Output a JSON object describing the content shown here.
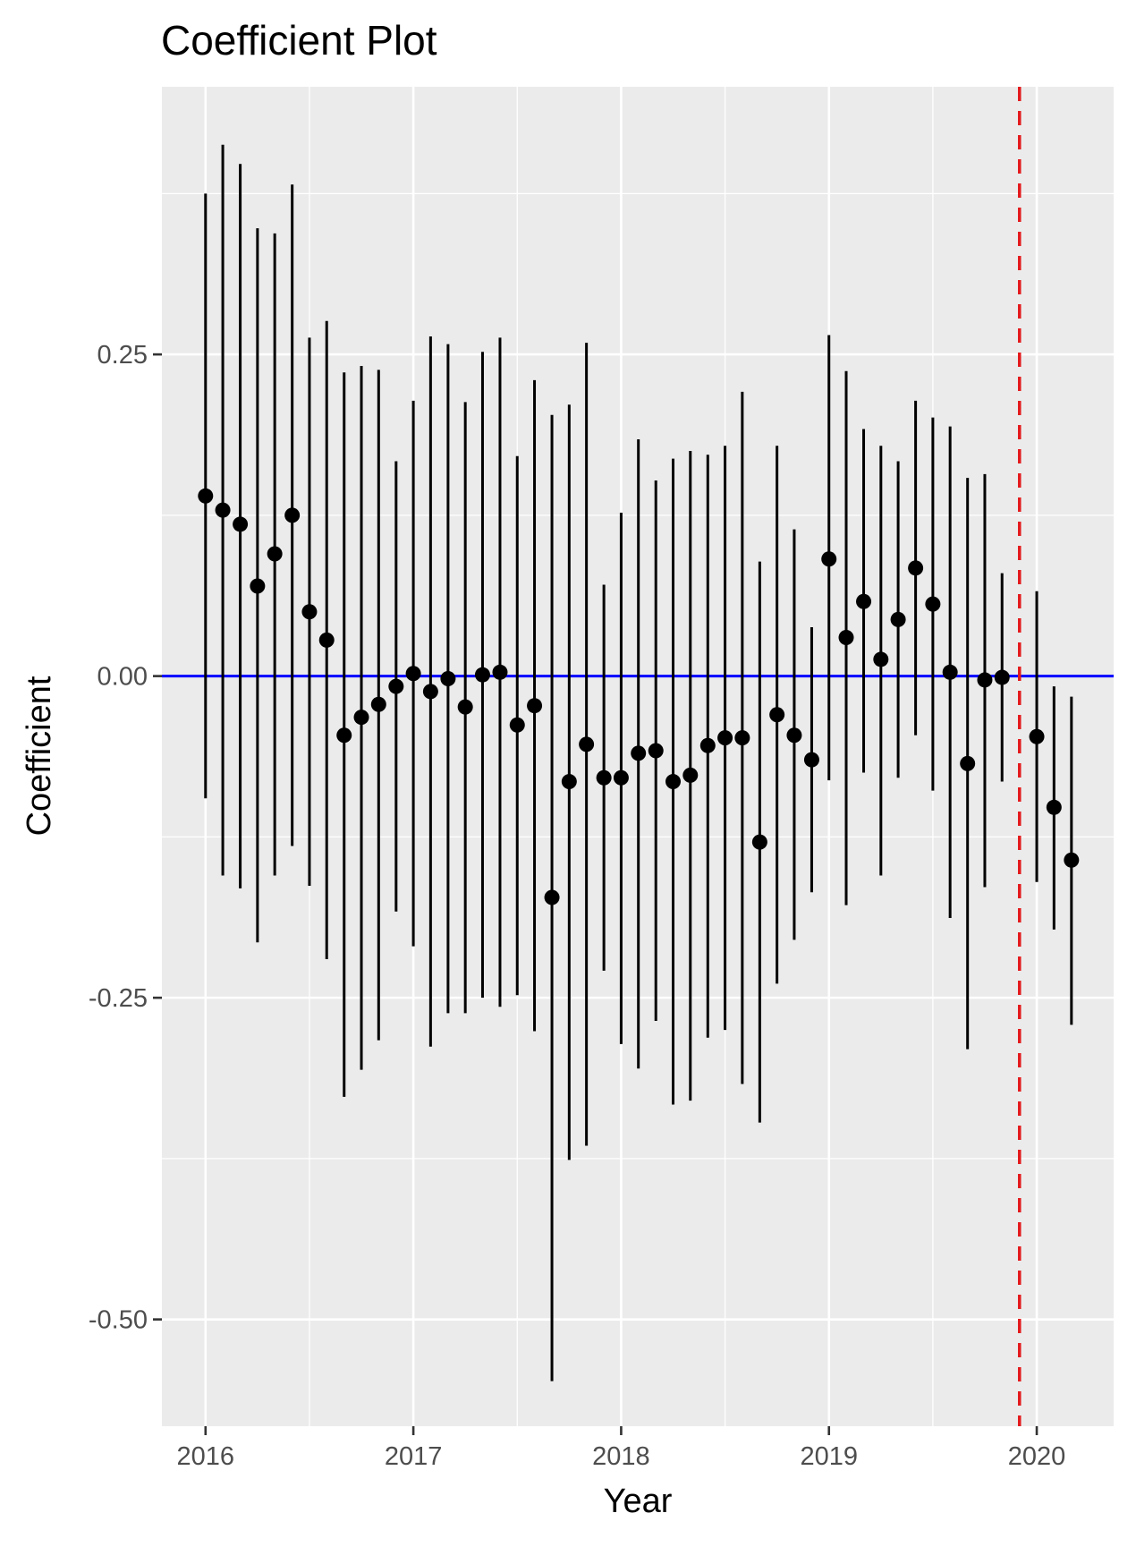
{
  "chart_data": {
    "type": "scatter",
    "title": "Coefficient Plot",
    "xlabel": "Year",
    "ylabel": "Coefficient",
    "xlim": [
      2015.79,
      2020.37
    ],
    "ylim": [
      -0.583,
      0.458
    ],
    "x_ticks": [
      2016,
      2017,
      2018,
      2019,
      2020
    ],
    "x_tick_labels": [
      "2016",
      "2017",
      "2018",
      "2019",
      "2020"
    ],
    "y_ticks": [
      -0.5,
      -0.25,
      0.0,
      0.25
    ],
    "y_tick_labels": [
      "-0.50",
      "-0.25",
      "0.00",
      "0.25"
    ],
    "grid": true,
    "reference_lines": {
      "horizontal": {
        "y": 0.0,
        "color": "#0000ff"
      },
      "vertical": {
        "x": 2019.917,
        "color": "#e31a1c",
        "style": "dashed"
      }
    },
    "colors": {
      "points": "#000000",
      "panel": "#ebebeb",
      "grid": "#ffffff"
    },
    "series": [
      {
        "points": [
          {
            "x": 2016.0,
            "y": 0.14,
            "lo": -0.095,
            "hi": 0.375
          },
          {
            "x": 2016.083,
            "y": 0.129,
            "lo": -0.155,
            "hi": 0.413
          },
          {
            "x": 2016.167,
            "y": 0.118,
            "lo": -0.165,
            "hi": 0.398
          },
          {
            "x": 2016.25,
            "y": 0.07,
            "lo": -0.207,
            "hi": 0.348
          },
          {
            "x": 2016.333,
            "y": 0.095,
            "lo": -0.155,
            "hi": 0.344
          },
          {
            "x": 2016.417,
            "y": 0.125,
            "lo": -0.132,
            "hi": 0.382
          },
          {
            "x": 2016.5,
            "y": 0.05,
            "lo": -0.163,
            "hi": 0.263
          },
          {
            "x": 2016.583,
            "y": 0.028,
            "lo": -0.22,
            "hi": 0.276
          },
          {
            "x": 2016.667,
            "y": -0.046,
            "lo": -0.327,
            "hi": 0.236
          },
          {
            "x": 2016.75,
            "y": -0.032,
            "lo": -0.306,
            "hi": 0.241
          },
          {
            "x": 2016.833,
            "y": -0.022,
            "lo": -0.283,
            "hi": 0.238
          },
          {
            "x": 2016.917,
            "y": -0.008,
            "lo": -0.183,
            "hi": 0.167
          },
          {
            "x": 2017.0,
            "y": 0.002,
            "lo": -0.21,
            "hi": 0.214
          },
          {
            "x": 2017.083,
            "y": -0.012,
            "lo": -0.288,
            "hi": 0.264
          },
          {
            "x": 2017.167,
            "y": -0.002,
            "lo": -0.262,
            "hi": 0.258
          },
          {
            "x": 2017.25,
            "y": -0.024,
            "lo": -0.262,
            "hi": 0.213
          },
          {
            "x": 2017.333,
            "y": 0.001,
            "lo": -0.25,
            "hi": 0.252
          },
          {
            "x": 2017.417,
            "y": 0.003,
            "lo": -0.257,
            "hi": 0.263
          },
          {
            "x": 2017.5,
            "y": -0.038,
            "lo": -0.248,
            "hi": 0.171
          },
          {
            "x": 2017.583,
            "y": -0.023,
            "lo": -0.276,
            "hi": 0.23
          },
          {
            "x": 2017.667,
            "y": -0.172,
            "lo": -0.548,
            "hi": 0.203
          },
          {
            "x": 2017.75,
            "y": -0.082,
            "lo": -0.376,
            "hi": 0.211
          },
          {
            "x": 2017.833,
            "y": -0.053,
            "lo": -0.365,
            "hi": 0.259
          },
          {
            "x": 2017.917,
            "y": -0.079,
            "lo": -0.229,
            "hi": 0.071
          },
          {
            "x": 2018.0,
            "y": -0.079,
            "lo": -0.286,
            "hi": 0.127
          },
          {
            "x": 2018.083,
            "y": -0.06,
            "lo": -0.305,
            "hi": 0.184
          },
          {
            "x": 2018.167,
            "y": -0.058,
            "lo": -0.268,
            "hi": 0.152
          },
          {
            "x": 2018.25,
            "y": -0.082,
            "lo": -0.333,
            "hi": 0.169
          },
          {
            "x": 2018.333,
            "y": -0.077,
            "lo": -0.33,
            "hi": 0.175
          },
          {
            "x": 2018.417,
            "y": -0.054,
            "lo": -0.281,
            "hi": 0.172
          },
          {
            "x": 2018.5,
            "y": -0.048,
            "lo": -0.275,
            "hi": 0.179
          },
          {
            "x": 2018.583,
            "y": -0.048,
            "lo": -0.317,
            "hi": 0.221
          },
          {
            "x": 2018.667,
            "y": -0.129,
            "lo": -0.347,
            "hi": 0.089
          },
          {
            "x": 2018.75,
            "y": -0.03,
            "lo": -0.239,
            "hi": 0.179
          },
          {
            "x": 2018.833,
            "y": -0.046,
            "lo": -0.205,
            "hi": 0.114
          },
          {
            "x": 2018.917,
            "y": -0.065,
            "lo": -0.168,
            "hi": 0.038
          },
          {
            "x": 2019.0,
            "y": 0.091,
            "lo": -0.081,
            "hi": 0.265
          },
          {
            "x": 2019.083,
            "y": 0.03,
            "lo": -0.178,
            "hi": 0.237
          },
          {
            "x": 2019.167,
            "y": 0.058,
            "lo": -0.075,
            "hi": 0.192
          },
          {
            "x": 2019.25,
            "y": 0.013,
            "lo": -0.155,
            "hi": 0.179
          },
          {
            "x": 2019.333,
            "y": 0.044,
            "lo": -0.079,
            "hi": 0.167
          },
          {
            "x": 2019.417,
            "y": 0.084,
            "lo": -0.046,
            "hi": 0.214
          },
          {
            "x": 2019.5,
            "y": 0.056,
            "lo": -0.089,
            "hi": 0.201
          },
          {
            "x": 2019.583,
            "y": 0.003,
            "lo": -0.188,
            "hi": 0.194
          },
          {
            "x": 2019.667,
            "y": -0.068,
            "lo": -0.29,
            "hi": 0.154
          },
          {
            "x": 2019.75,
            "y": -0.003,
            "lo": -0.164,
            "hi": 0.157
          },
          {
            "x": 2019.833,
            "y": -0.001,
            "lo": -0.082,
            "hi": 0.08
          },
          {
            "x": 2020.0,
            "y": -0.047,
            "lo": -0.16,
            "hi": 0.066
          },
          {
            "x": 2020.083,
            "y": -0.102,
            "lo": -0.197,
            "hi": -0.008
          },
          {
            "x": 2020.167,
            "y": -0.143,
            "lo": -0.271,
            "hi": -0.016
          }
        ]
      }
    ]
  }
}
